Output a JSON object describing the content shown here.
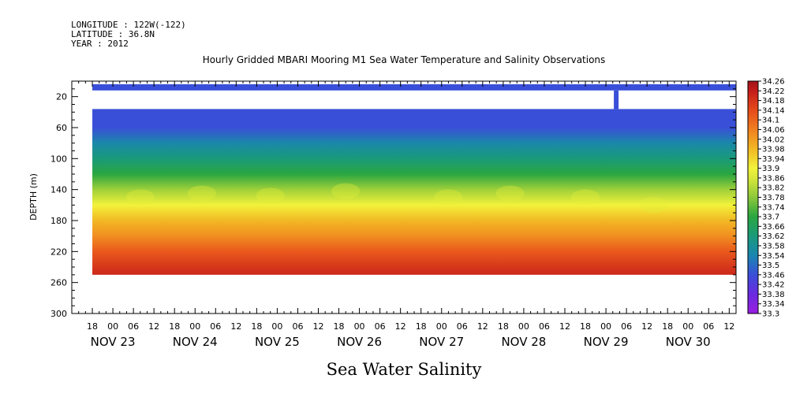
{
  "header": {
    "longitude": "LONGITUDE : 122W(-122)",
    "latitude": "LATITUDE : 36.8N",
    "year": "YEAR : 2012"
  },
  "chart_data": {
    "type": "heatmap",
    "title": "Hourly Gridded MBARI Mooring M1 Sea Water Temperature and Salinity Observations",
    "ylabel": "DEPTH (m)",
    "xlabel": "Sea Water Salinity",
    "ylim": [
      300,
      0
    ],
    "y_ticks": [
      20,
      60,
      100,
      140,
      180,
      220,
      260,
      300
    ],
    "x_range_hours": [
      "Nov 22 12:00",
      "Nov 30 14:00"
    ],
    "hour_tick_labels": [
      "18",
      "00",
      "06",
      "12",
      "18",
      "00",
      "06",
      "12",
      "18",
      "00",
      "06",
      "12",
      "18",
      "00",
      "06",
      "12",
      "18",
      "00",
      "06",
      "12",
      "18",
      "00",
      "06",
      "12",
      "18",
      "00",
      "06",
      "12",
      "18",
      "00",
      "06",
      "12"
    ],
    "date_labels": [
      "NOV 23",
      "NOV 24",
      "NOV 25",
      "NOV 26",
      "NOV 27",
      "NOV 28",
      "NOV 29",
      "NOV 30"
    ],
    "colorbar_labels": [
      "34.26",
      "34.22",
      "34.18",
      "34.14",
      "34.1",
      "34.06",
      "34.02",
      "33.98",
      "33.94",
      "33.9",
      "33.86",
      "33.82",
      "33.78",
      "33.74",
      "33.7",
      "33.66",
      "33.62",
      "33.58",
      "33.54",
      "33.5",
      "33.46",
      "33.42",
      "33.38",
      "33.34",
      "33.3"
    ],
    "colorbar_range": [
      33.3,
      34.26
    ],
    "data_depths_m": [
      10,
      40,
      60,
      80,
      100,
      120,
      140,
      160,
      180,
      200,
      220,
      250
    ],
    "data_coverage_days": [
      "Nov 22 18:00",
      "Nov 30 14:00"
    ],
    "gap_depth_range_m": [
      13,
      35
    ],
    "profile_by_depth": {
      "depth_10": 33.45,
      "depth_40_to_60": 33.46,
      "depth_80": 33.55,
      "depth_100": 33.62,
      "depth_120": 33.7,
      "depth_140": 33.8,
      "depth_160": 33.9,
      "depth_180": 33.98,
      "depth_200": 34.04,
      "depth_220": 34.12,
      "depth_250": 34.2
    },
    "colors": {
      "purple": "#9a1ee0",
      "blue": "#3a4fd8",
      "teal": "#1a9a8a",
      "green": "#2aa640",
      "yellow": "#f2f23a",
      "orange": "#f2a020",
      "red": "#e62a1a",
      "darkred": "#a0141a"
    }
  }
}
